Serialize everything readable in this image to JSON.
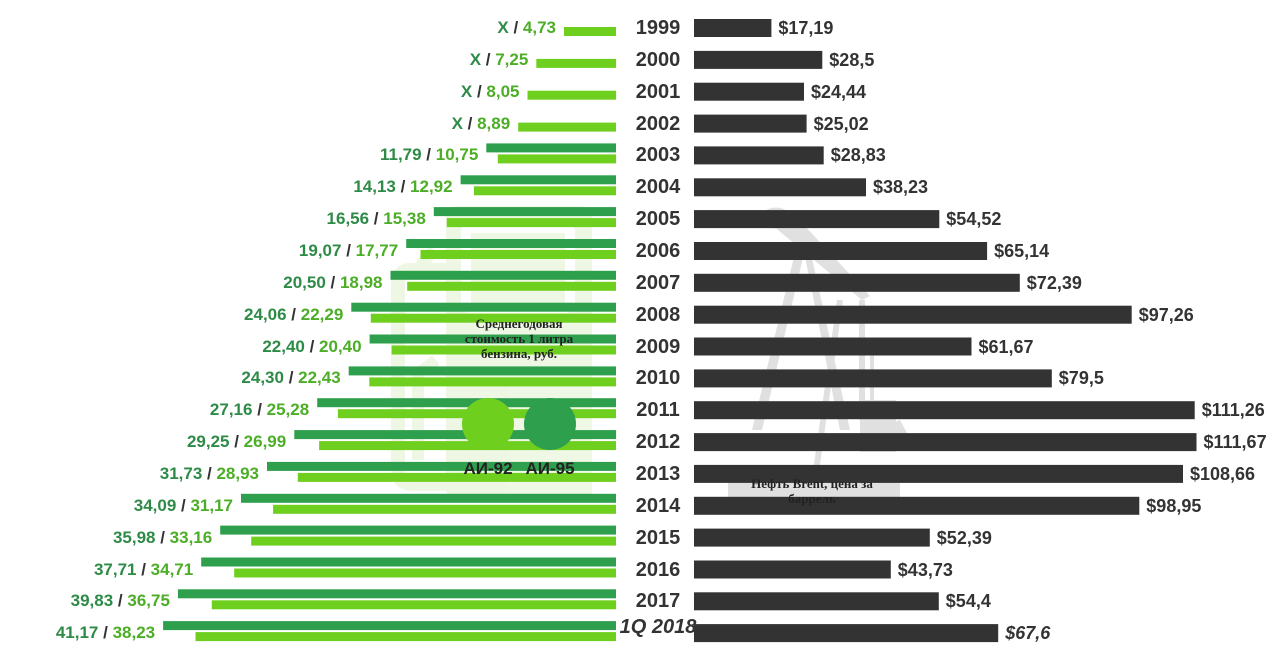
{
  "chart_data": {
    "type": "bar",
    "categories": [
      "1999",
      "2000",
      "2001",
      "2002",
      "2003",
      "2004",
      "2005",
      "2006",
      "2007",
      "2008",
      "2009",
      "2010",
      "2011",
      "2012",
      "2013",
      "2014",
      "2015",
      "2016",
      "2017",
      "1Q 2018"
    ],
    "series": [
      {
        "name": "АИ-95",
        "values": [
          null,
          null,
          null,
          null,
          11.79,
          14.13,
          16.56,
          19.07,
          20.5,
          24.06,
          22.4,
          24.3,
          27.16,
          29.25,
          31.73,
          34.09,
          35.98,
          37.71,
          39.83,
          41.17
        ],
        "labels": [
          "X",
          "X",
          "X",
          "X",
          "11,79",
          "14,13",
          "16,56",
          "19,07",
          "20,50",
          "24,06",
          "22,40",
          "24,30",
          "27,16",
          "29,25",
          "31,73",
          "34,09",
          "35,98",
          "37,71",
          "39,83",
          "41,17"
        ]
      },
      {
        "name": "АИ-92",
        "values": [
          4.73,
          7.25,
          8.05,
          8.89,
          10.75,
          12.92,
          15.38,
          17.77,
          18.98,
          22.29,
          20.4,
          22.43,
          25.28,
          26.99,
          28.93,
          31.17,
          33.16,
          34.71,
          36.75,
          38.23
        ],
        "labels": [
          "4,73",
          "7,25",
          "8,05",
          "8,89",
          "10,75",
          "12,92",
          "15,38",
          "17,77",
          "18,98",
          "22,29",
          "20,40",
          "22,43",
          "25,28",
          "26,99",
          "28,93",
          "31,17",
          "33,16",
          "34,71",
          "36,75",
          "38,23"
        ]
      },
      {
        "name": "Нефть Brent, цена за баррель",
        "values": [
          17.19,
          28.5,
          24.44,
          25.02,
          28.83,
          38.23,
          54.52,
          65.14,
          72.39,
          97.26,
          61.67,
          79.5,
          111.26,
          111.67,
          108.66,
          98.95,
          52.39,
          43.73,
          54.4,
          67.6
        ],
        "labels": [
          "$17,19",
          "$28,5",
          "$24,44",
          "$25,02",
          "$28,83",
          "$38,23",
          "$54,52",
          "$65,14",
          "$72,39",
          "$97,26",
          "$61,67",
          "$79,5",
          "$111,26",
          "$111,67",
          "$108,66",
          "$98,95",
          "$52,39",
          "$43,73",
          "$54,4",
          "$67,6"
        ]
      }
    ],
    "title": "",
    "legend": {
      "gasoline_caption": "Среднегодовая стоимость 1 литра бензина, руб.",
      "gasoline_grades": [
        "АИ-92",
        "АИ-95"
      ],
      "oil_caption": "Нефть Brent, цена за баррель"
    },
    "separator": "/",
    "colors": {
      "ai95": "#2e9f4d",
      "ai92": "#6fcf1f",
      "oil": "#333333",
      "ai95_text": "#2e8b47",
      "ai92_text": "#4cae26"
    },
    "grid": false
  }
}
